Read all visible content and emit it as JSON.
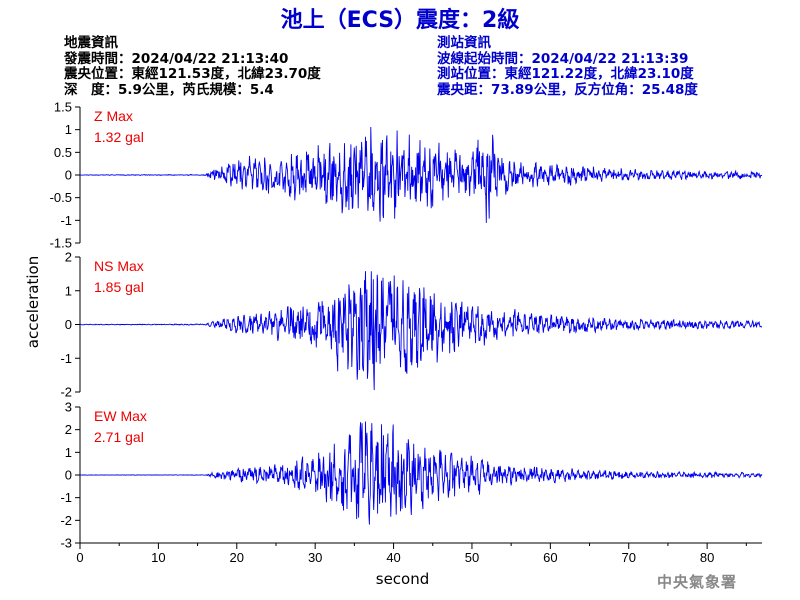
{
  "title": "池上（ECS）震度：2級",
  "quake_info": {
    "heading": "地震資訊",
    "time": "發震時間：2024/04/22 21:13:40",
    "epicenter": "震央位置：東經121.53度，北緯23.70度",
    "depth_mag": "深　度：5.9公里，芮氏規模：5.4"
  },
  "station_info": {
    "heading": "測站資訊",
    "wave_start": "波線起始時間：2024/04/22 21:13:39",
    "location": "測站位置：東經121.22度，北緯23.10度",
    "distance": "震央距：73.89公里，反方位角：25.48度"
  },
  "footer": "中央氣象署",
  "colors": {
    "title": "#0000cc",
    "trace": "#0000ee",
    "label": "#ee0000",
    "station": "#0000cc"
  },
  "chart_data": {
    "type": "line",
    "xlabel": "second",
    "ylabel": "acceleration",
    "xlim": [
      0,
      87
    ],
    "xticks": [
      0,
      10,
      20,
      30,
      40,
      50,
      60,
      70,
      80
    ],
    "panels": [
      {
        "name": "Z Max",
        "max_label": "1.32 gal",
        "ylim": [
          -1.5,
          1.5
        ],
        "yticks": [
          -1.5,
          -1,
          -0.5,
          0,
          0.5,
          1,
          1.5
        ],
        "ytick_labels": [
          "-1.5",
          "-1",
          "-0.5",
          "0",
          "0.5",
          "1",
          "1.5"
        ],
        "envelope": [
          [
            0,
            0.006
          ],
          [
            16,
            0.01
          ],
          [
            17,
            0.12
          ],
          [
            20,
            0.35
          ],
          [
            25,
            0.45
          ],
          [
            30,
            0.55
          ],
          [
            33,
            0.85
          ],
          [
            37,
            1.0
          ],
          [
            40,
            0.95
          ],
          [
            43,
            0.85
          ],
          [
            46,
            0.65
          ],
          [
            50,
            0.45
          ],
          [
            52.3,
            1.32
          ],
          [
            53,
            0.5
          ],
          [
            56,
            0.3
          ],
          [
            60,
            0.25
          ],
          [
            65,
            0.18
          ],
          [
            70,
            0.12
          ],
          [
            80,
            0.08
          ],
          [
            87,
            0.07
          ]
        ],
        "seed": 11
      },
      {
        "name": "NS Max",
        "max_label": "1.85 gal",
        "ylim": [
          -2,
          2
        ],
        "yticks": [
          -2,
          -1,
          0,
          1,
          2
        ],
        "ytick_labels": [
          "-2",
          "-1",
          "0",
          "1",
          "2"
        ],
        "envelope": [
          [
            0,
            0.01
          ],
          [
            16,
            0.015
          ],
          [
            17,
            0.08
          ],
          [
            20,
            0.25
          ],
          [
            25,
            0.4
          ],
          [
            30,
            0.7
          ],
          [
            33,
            1.3
          ],
          [
            36,
            1.85
          ],
          [
            40,
            1.55
          ],
          [
            43,
            1.3
          ],
          [
            46,
            0.95
          ],
          [
            50,
            0.6
          ],
          [
            55,
            0.4
          ],
          [
            60,
            0.3
          ],
          [
            65,
            0.2
          ],
          [
            70,
            0.15
          ],
          [
            80,
            0.12
          ],
          [
            87,
            0.1
          ]
        ],
        "seed": 23
      },
      {
        "name": "EW Max",
        "max_label": "2.71 gal",
        "ylim": [
          -3,
          3
        ],
        "yticks": [
          -3,
          -2,
          -1,
          0,
          1,
          2,
          3
        ],
        "ytick_labels": [
          "-3",
          "-2",
          "-1",
          "0",
          "1",
          "2",
          "3"
        ],
        "envelope": [
          [
            0,
            0.006
          ],
          [
            16,
            0.01
          ],
          [
            17,
            0.12
          ],
          [
            20,
            0.3
          ],
          [
            25,
            0.45
          ],
          [
            30,
            0.8
          ],
          [
            33,
            1.5
          ],
          [
            36,
            2.71
          ],
          [
            39,
            2.0
          ],
          [
            42,
            1.6
          ],
          [
            45,
            1.1
          ],
          [
            50,
            0.8
          ],
          [
            55,
            0.45
          ],
          [
            60,
            0.3
          ],
          [
            65,
            0.22
          ],
          [
            70,
            0.15
          ],
          [
            80,
            0.12
          ],
          [
            87,
            0.1
          ]
        ],
        "seed": 37
      }
    ]
  }
}
